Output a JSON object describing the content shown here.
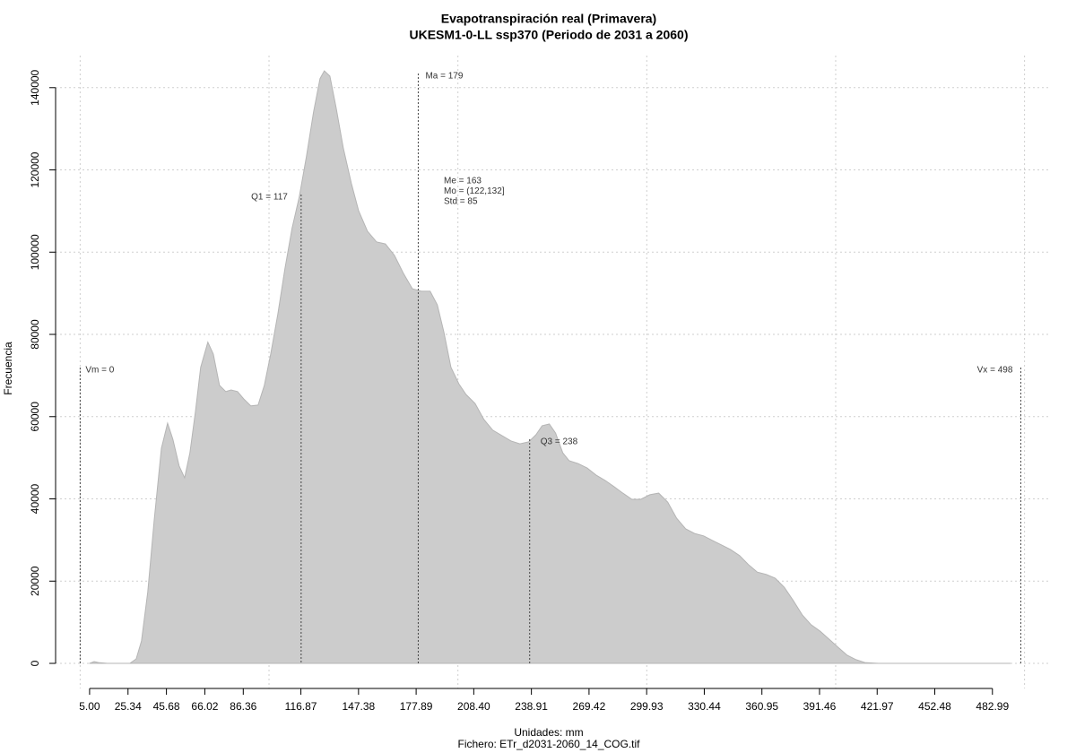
{
  "chart_data": {
    "type": "area",
    "title": "Evapotranspiración real (Primavera)",
    "subtitle": "UKESM1-0-LL ssp370 (Periodo de 2031 a 2060)",
    "x_label": "Unidades: mm",
    "y_label": "Frecuencia",
    "footer": "Fichero: ETr_d2031-2060_14_COG.tif",
    "color": "#cccccc",
    "x": [
      5,
      7.4,
      9.7,
      14.5,
      26.3,
      29.7,
      32.5,
      35.8,
      39.2,
      43,
      46.3,
      49.1,
      52.4,
      55.3,
      58.1,
      61,
      63.8,
      67.6,
      70.5,
      73.8,
      77.1,
      79.9,
      83.3,
      86.6,
      90.4,
      94.2,
      97.5,
      100.9,
      104.7,
      108.4,
      112.2,
      116,
      119.8,
      123.6,
      127,
      129.3,
      132.2,
      135.5,
      139.3,
      143.6,
      147.4,
      152.1,
      156.9,
      161.6,
      166.4,
      171.1,
      175.9,
      180.6,
      185.3,
      189.1,
      192.5,
      196.3,
      200.5,
      204.3,
      209.1,
      213.8,
      218.5,
      223.3,
      228,
      232.8,
      237.5,
      241.3,
      244.6,
      248.4,
      251.7,
      255.5,
      258.9,
      263.6,
      268.4,
      273.1,
      277.9,
      282.6,
      287.3,
      292.1,
      296.8,
      301.6,
      306.3,
      311.1,
      315.8,
      320.6,
      325.3,
      330.1,
      334.8,
      339.6,
      344.3,
      349.1,
      353.8,
      358.5,
      363.3,
      368,
      372.8,
      377.5,
      382.3,
      387,
      391.8,
      396.5,
      401.3,
      406,
      410.8,
      415.5,
      422.6,
      492.4
    ],
    "values": [
      0,
      436,
      200,
      0,
      0,
      1090,
      5450,
      17400,
      34900,
      52300,
      58400,
      54500,
      48000,
      45100,
      51200,
      61100,
      72000,
      78100,
      75200,
      67600,
      66100,
      66500,
      66100,
      64300,
      62600,
      62800,
      67600,
      75200,
      85000,
      95900,
      105800,
      113400,
      123200,
      134100,
      142200,
      144100,
      142800,
      135200,
      125400,
      116700,
      110100,
      105100,
      102500,
      102000,
      99200,
      94900,
      91100,
      90500,
      90500,
      87200,
      80700,
      72000,
      68000,
      65400,
      63200,
      59300,
      56700,
      55400,
      54100,
      53400,
      53900,
      55600,
      57800,
      58200,
      56000,
      51200,
      49300,
      48600,
      47500,
      45800,
      44500,
      43000,
      41400,
      39900,
      39900,
      41000,
      41400,
      39200,
      35300,
      32700,
      31600,
      31000,
      29900,
      28800,
      27700,
      26200,
      24000,
      22200,
      21600,
      20700,
      18500,
      15300,
      11800,
      9400,
      7800,
      5900,
      3900,
      2000,
      900,
      200,
      0,
      0
    ],
    "xlim": [
      -13,
      513
    ],
    "ylim": [
      -6100,
      147800
    ],
    "xticks": [
      {
        "value": 5,
        "label": "5.00"
      },
      25.34,
      45.68,
      66.02,
      86.36,
      116.87,
      147.38,
      177.89,
      {
        "value": 208.4,
        "label": "208.40"
      },
      238.91,
      269.42,
      299.93,
      330.44,
      360.95,
      391.46,
      421.97,
      452.48,
      482.99
    ],
    "yticks": [
      0,
      20000,
      40000,
      60000,
      80000,
      100000,
      120000,
      140000
    ],
    "xgrid": [
      0,
      100,
      200,
      300,
      400,
      500
    ],
    "grid": true,
    "markers": [
      {
        "label": "Vm = 0",
        "x": 0
      },
      {
        "label": "Q1 = 117",
        "x": 117
      },
      {
        "label": "Ma = 179",
        "x": 179
      },
      {
        "label": "Q3 = 238",
        "x": 238
      },
      {
        "label": "Vx = 498",
        "x": 498
      }
    ],
    "stats": [
      "Me = 163",
      "Mo = (122,132]",
      "Std = 85"
    ]
  }
}
